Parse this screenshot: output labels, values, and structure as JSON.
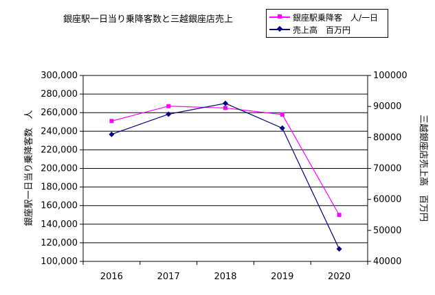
{
  "chart_data": {
    "type": "line",
    "title": "銀座駅一日当り乗降客数と三越銀座店売上",
    "categories": [
      "2016",
      "2017",
      "2018",
      "2019",
      "2020"
    ],
    "y_left": {
      "label": "銀座駅一日当り乗降客数　人",
      "lim": [
        100000,
        300000
      ],
      "ticks": [
        "100,000",
        "120,000",
        "140,000",
        "160,000",
        "180,000",
        "200,000",
        "220,000",
        "240,000",
        "260,000",
        "280,000",
        "300,000"
      ]
    },
    "y_right": {
      "label": "三越銀座店売上高　百万円",
      "lim": [
        40000,
        100000
      ],
      "ticks": [
        "40000",
        "50000",
        "60000",
        "70000",
        "80000",
        "90000",
        "100000"
      ]
    },
    "series": [
      {
        "name": "銀座駅乗降客　人/一日",
        "axis": "left",
        "color": "#ff00ff",
        "marker": "square",
        "values": [
          251000,
          267000,
          265000,
          258000,
          150000
        ]
      },
      {
        "name": "売上高　百万円",
        "axis": "right",
        "color": "#000080",
        "marker": "diamond",
        "values": [
          81000,
          87500,
          91000,
          83000,
          44000
        ]
      }
    ],
    "grid": true,
    "legend": "top-right"
  }
}
